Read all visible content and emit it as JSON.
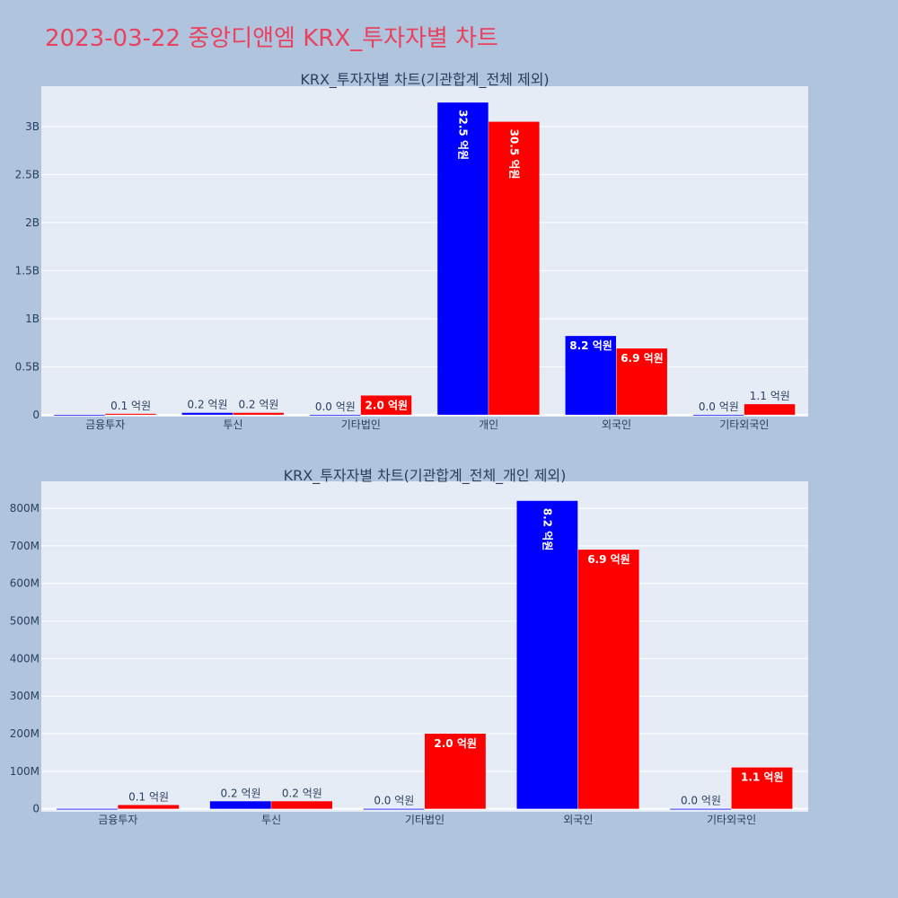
{
  "page_title": "2023-03-22 중앙디앤엠 KRX_투자자별 차트",
  "colors": {
    "series_a": "#0000ff",
    "series_b": "#ff0000",
    "plot_bg": "#e5ecf6",
    "page_bg": "#b0c4de",
    "title": "#e8425e"
  },
  "chart_data": [
    {
      "type": "bar",
      "title": "KRX_투자자별 차트(기관합계_전체 제외)",
      "categories": [
        "금융투자",
        "투신",
        "기타법인",
        "개인",
        "외국인",
        "기타외국인"
      ],
      "ylim": [
        -20000000,
        3420000000
      ],
      "y_ticks": [
        0,
        500000000,
        1000000000,
        1500000000,
        2000000000,
        2500000000,
        3000000000
      ],
      "y_tick_labels": [
        "0",
        "0.5B",
        "1B",
        "1.5B",
        "2B",
        "2.5B",
        "3B"
      ],
      "grid": true,
      "series": [
        {
          "values": [
            0,
            20000000,
            0,
            3250000000,
            820000000,
            0
          ],
          "labels": [
            "",
            "0.2 억원",
            "0.0 억원",
            "32.5 억원",
            "8.2 억원",
            "0.0 억원"
          ]
        },
        {
          "values": [
            10000000,
            20000000,
            200000000,
            3050000000,
            690000000,
            110000000
          ],
          "labels": [
            "0.1 억원",
            "0.2 억원",
            "2.0 억원",
            "30.5 억원",
            "6.9 억원",
            "1.1 억원"
          ]
        }
      ]
    },
    {
      "type": "bar",
      "title": "KRX_투자자별 차트(기관합계_전체_개인 제외)",
      "categories": [
        "금융투자",
        "투신",
        "기타법인",
        "외국인",
        "기타외국인"
      ],
      "ylim": [
        -8000000,
        872000000
      ],
      "y_ticks": [
        0,
        100000000,
        200000000,
        300000000,
        400000000,
        500000000,
        600000000,
        700000000,
        800000000
      ],
      "y_tick_labels": [
        "0",
        "100M",
        "200M",
        "300M",
        "400M",
        "500M",
        "600M",
        "700M",
        "800M"
      ],
      "grid": true,
      "series": [
        {
          "values": [
            0,
            20000000,
            0,
            820000000,
            0
          ],
          "labels": [
            "",
            "0.2 억원",
            "0.0 억원",
            "8.2 억원",
            "0.0 억원"
          ]
        },
        {
          "values": [
            10000000,
            20000000,
            200000000,
            690000000,
            110000000
          ],
          "labels": [
            "0.1 억원",
            "0.2 억원",
            "2.0 억원",
            "6.9 억원",
            "1.1 억원"
          ]
        }
      ]
    }
  ]
}
